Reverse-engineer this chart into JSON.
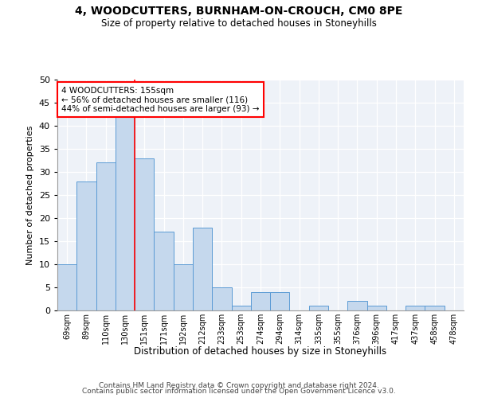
{
  "title": "4, WOODCUTTERS, BURNHAM-ON-CROUCH, CM0 8PE",
  "subtitle": "Size of property relative to detached houses in Stoneyhills",
  "xlabel": "Distribution of detached houses by size in Stoneyhills",
  "ylabel": "Number of detached properties",
  "categories": [
    "69sqm",
    "89sqm",
    "110sqm",
    "130sqm",
    "151sqm",
    "171sqm",
    "192sqm",
    "212sqm",
    "233sqm",
    "253sqm",
    "274sqm",
    "294sqm",
    "314sqm",
    "335sqm",
    "355sqm",
    "376sqm",
    "396sqm",
    "417sqm",
    "437sqm",
    "458sqm",
    "478sqm"
  ],
  "values": [
    10,
    28,
    32,
    42,
    33,
    17,
    10,
    18,
    5,
    1,
    4,
    4,
    0,
    1,
    0,
    2,
    1,
    0,
    1,
    1,
    0
  ],
  "bar_color": "#c5d8ed",
  "bar_edge_color": "#5b9bd5",
  "red_line_x": 3.5,
  "annotation_text": "4 WOODCUTTERS: 155sqm\n← 56% of detached houses are smaller (116)\n44% of semi-detached houses are larger (93) →",
  "annotation_box_color": "white",
  "annotation_box_edge_color": "red",
  "ylim": [
    0,
    50
  ],
  "yticks": [
    0,
    5,
    10,
    15,
    20,
    25,
    30,
    35,
    40,
    45,
    50
  ],
  "background_color": "#eef2f8",
  "footer_line1": "Contains HM Land Registry data © Crown copyright and database right 2024.",
  "footer_line2": "Contains public sector information licensed under the Open Government Licence v3.0."
}
